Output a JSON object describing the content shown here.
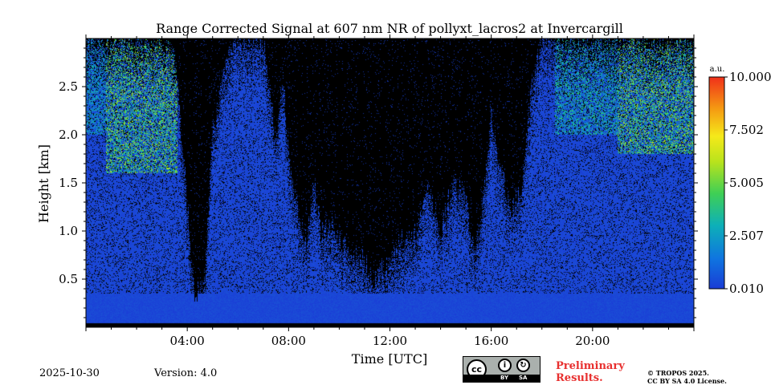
{
  "chart_data": {
    "type": "heatmap",
    "title": "Range Corrected Signal at 607 nm NR of pollyxt_lacros2 at Invercargill",
    "xlabel": "Time [UTC]",
    "ylabel": "Height [km]",
    "xlim": [
      0,
      24
    ],
    "ylim": [
      0,
      3.0
    ],
    "x_ticks": [
      {
        "value": 4,
        "label": "04:00"
      },
      {
        "value": 8,
        "label": "08:00"
      },
      {
        "value": 12,
        "label": "12:00"
      },
      {
        "value": 16,
        "label": "16:00"
      },
      {
        "value": 20,
        "label": "20:00"
      }
    ],
    "y_ticks": [
      {
        "value": 0.5,
        "label": "0.5"
      },
      {
        "value": 1.0,
        "label": "1.0"
      },
      {
        "value": 1.5,
        "label": "1.5"
      },
      {
        "value": 2.0,
        "label": "2.0"
      },
      {
        "value": 2.5,
        "label": "2.5"
      }
    ],
    "colorbar": {
      "unit": "a.u.",
      "range": [
        0.01,
        10.0
      ],
      "ticks": [
        {
          "value": 0.01,
          "label": "0.010"
        },
        {
          "value": 2.507,
          "label": "2.507"
        },
        {
          "value": 5.005,
          "label": "5.005"
        },
        {
          "value": 7.502,
          "label": "7.502"
        },
        {
          "value": 10.0,
          "label": "10.000"
        }
      ]
    },
    "signal_top_km": [
      [
        0,
        3.0
      ],
      [
        1.0,
        3.0
      ],
      [
        2.0,
        3.0
      ],
      [
        3.0,
        3.0
      ],
      [
        3.5,
        2.9
      ],
      [
        4.0,
        1.3
      ],
      [
        4.3,
        0.3
      ],
      [
        4.7,
        0.5
      ],
      [
        5.0,
        2.1
      ],
      [
        5.8,
        3.0
      ],
      [
        7.0,
        3.0
      ],
      [
        7.5,
        2.0
      ],
      [
        7.8,
        2.6
      ],
      [
        8.0,
        1.8
      ],
      [
        8.4,
        1.2
      ],
      [
        8.7,
        0.9
      ],
      [
        9.0,
        1.5
      ],
      [
        9.3,
        1.0
      ],
      [
        9.7,
        1.1
      ],
      [
        10.0,
        0.9
      ],
      [
        10.5,
        0.8
      ],
      [
        11.0,
        0.7
      ],
      [
        11.3,
        0.5
      ],
      [
        11.7,
        0.6
      ],
      [
        12.0,
        0.7
      ],
      [
        12.5,
        0.9
      ],
      [
        13.0,
        1.0
      ],
      [
        13.5,
        1.5
      ],
      [
        14.0,
        1.0
      ],
      [
        14.5,
        1.5
      ],
      [
        15.0,
        1.4
      ],
      [
        15.3,
        0.8
      ],
      [
        15.6,
        1.1
      ],
      [
        16.0,
        2.2
      ],
      [
        16.4,
        1.6
      ],
      [
        16.8,
        1.2
      ],
      [
        17.2,
        1.5
      ],
      [
        17.6,
        2.5
      ],
      [
        18.0,
        3.0
      ],
      [
        24.0,
        3.0
      ]
    ],
    "bright_regions": [
      {
        "t0": 0.8,
        "t1": 3.6,
        "h0": 1.6,
        "h1": 3.0,
        "value": 5.0
      },
      {
        "t0": 0.0,
        "t1": 0.8,
        "h0": 2.0,
        "h1": 3.0,
        "value": 3.0
      },
      {
        "t0": 18.5,
        "t1": 21.0,
        "h0": 2.0,
        "h1": 3.0,
        "value": 3.5
      },
      {
        "t0": 21.0,
        "t1": 24.0,
        "h0": 1.8,
        "h1": 3.0,
        "value": 5.0
      }
    ],
    "footer": {
      "date": "2025-10-30",
      "version": "Version: 4.0",
      "preliminary": [
        "Preliminary",
        "Results."
      ],
      "copyright": [
        "© TROPOS 2025.",
        "CC BY SA 4.0 License."
      ]
    },
    "license_badge": {
      "cc": "cc",
      "by": "BY",
      "sa": "SA"
    },
    "colors": {
      "low": "#1a47d6",
      "colormap": [
        "#1a3cd6",
        "#0f74e0",
        "#0db0b8",
        "#3fcf55",
        "#b9e31c",
        "#f5e91a",
        "#f59a12",
        "#f0301a"
      ],
      "no_signal": "#000000",
      "preliminary_text": "#e8302f"
    }
  }
}
